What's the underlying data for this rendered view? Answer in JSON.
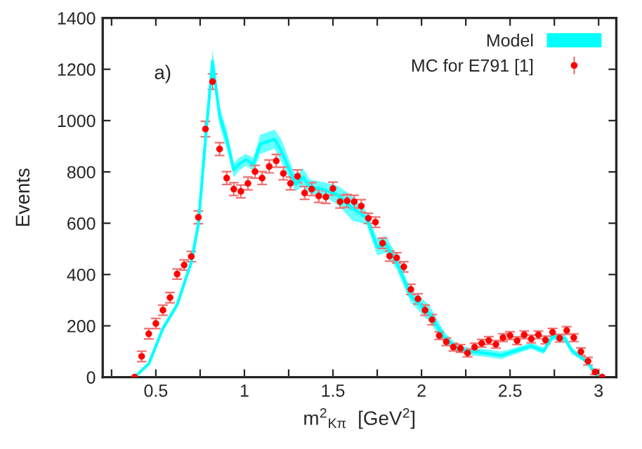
{
  "chart_data": {
    "type": "scatter",
    "xlabel": "m$^{2}$$_{Kπ}$  [GeV$^{2}$]",
    "ylabel": "Events",
    "annotations": [
      "a)"
    ],
    "xlim": [
      0.2,
      3.1
    ],
    "ylim": [
      0,
      1400
    ],
    "xticks": [
      {
        "value": 0.25,
        "label": null
      },
      0.5,
      {
        "value": 0.75,
        "label": null
      },
      1,
      {
        "value": 1.25,
        "label": null
      },
      1.5,
      {
        "value": 1.75,
        "label": null
      },
      2,
      {
        "value": 2.25,
        "label": null
      },
      2.5,
      {
        "value": 2.75,
        "label": null
      },
      3
    ],
    "yticks": [
      0,
      200,
      400,
      600,
      800,
      1000,
      1200,
      1400
    ],
    "grid": false,
    "legend": "top right",
    "series": [
      {
        "name": "Model",
        "type": "line",
        "color": "#00ffff",
        "x": [
          0.38,
          0.46,
          0.54,
          0.62,
          0.7,
          0.74,
          0.78,
          0.82,
          0.86,
          0.9,
          0.94,
          0.97,
          1.01,
          1.05,
          1.09,
          1.17,
          1.21,
          1.29,
          1.33,
          1.37,
          1.45,
          1.53,
          1.61,
          1.69,
          1.75,
          1.8,
          1.86,
          1.94,
          2.04,
          2.13,
          2.2,
          2.27,
          2.35,
          2.45,
          2.53,
          2.62,
          2.69,
          2.74,
          2.81,
          2.85,
          2.93,
          3.0
        ],
        "lower": [
          0,
          45,
          180,
          270,
          435,
          580,
          900,
          1190,
          980,
          890,
          780,
          805,
          825,
          805,
          870,
          890,
          835,
          725,
          745,
          715,
          705,
          670,
          610,
          595,
          475,
          485,
          420,
          290,
          220,
          135,
          100,
          85,
          80,
          70,
          90,
          110,
          90,
          145,
          135,
          90,
          55,
          0
        ],
        "upper": [
          0,
          60,
          200,
          295,
          460,
          610,
          950,
          1275,
          1055,
          965,
          835,
          855,
          870,
          855,
          945,
          965,
          925,
          780,
          815,
          770,
          760,
          745,
          705,
          645,
          540,
          550,
          475,
          340,
          285,
          175,
          125,
          115,
          110,
          100,
          115,
          135,
          115,
          175,
          165,
          115,
          70,
          0
        ],
        "values": [
          0,
          52,
          190,
          282,
          448,
          595,
          925,
          1232,
          1018,
          928,
          808,
          830,
          848,
          830,
          908,
          928,
          880,
          752,
          780,
          742,
          732,
          708,
          658,
          620,
          508,
          518,
          448,
          315,
          252,
          155,
          112,
          100,
          95,
          85,
          102,
          122,
          102,
          160,
          150,
          102,
          62,
          0
        ]
      },
      {
        "name": "MC for E791 [1]",
        "color": "#ff0000",
        "marker": "circle",
        "x": [
          0.38,
          0.42,
          0.46,
          0.5,
          0.54,
          0.58,
          0.62,
          0.66,
          0.7,
          0.74,
          0.78,
          0.82,
          0.86,
          0.9,
          0.94,
          0.98,
          1.02,
          1.06,
          1.1,
          1.14,
          1.18,
          1.22,
          1.26,
          1.3,
          1.34,
          1.38,
          1.42,
          1.46,
          1.5,
          1.54,
          1.58,
          1.62,
          1.66,
          1.7,
          1.74,
          1.78,
          1.82,
          1.86,
          1.9,
          1.94,
          1.98,
          2.02,
          2.06,
          2.1,
          2.14,
          2.18,
          2.22,
          2.26,
          2.3,
          2.34,
          2.38,
          2.42,
          2.46,
          2.5,
          2.54,
          2.58,
          2.62,
          2.66,
          2.7,
          2.74,
          2.78,
          2.82,
          2.86,
          2.9,
          2.94,
          2.98,
          3.02
        ],
        "values": [
          0,
          81,
          169,
          209,
          261,
          310,
          402,
          437,
          470,
          623,
          967,
          1152,
          889,
          776,
          733,
          724,
          755,
          801,
          776,
          821,
          843,
          794,
          755,
          783,
          718,
          733,
          706,
          702,
          735,
          684,
          687,
          684,
          667,
          619,
          604,
          522,
          472,
          465,
          430,
          342,
          305,
          261,
          224,
          162,
          138,
          117,
          112,
          94,
          117,
          132,
          143,
          128,
          154,
          162,
          142,
          165,
          149,
          165,
          145,
          175,
          152,
          182,
          154,
          99,
          62,
          20,
          0
        ],
        "errors": [
          null,
          20,
          20,
          20,
          20,
          20,
          20,
          20,
          20,
          25,
          30,
          30,
          25,
          25,
          25,
          25,
          25,
          25,
          25,
          25,
          25,
          25,
          25,
          25,
          25,
          25,
          25,
          25,
          25,
          25,
          25,
          25,
          25,
          20,
          20,
          20,
          20,
          20,
          20,
          20,
          20,
          20,
          20,
          15,
          15,
          15,
          15,
          15,
          15,
          15,
          15,
          15,
          15,
          15,
          15,
          15,
          15,
          15,
          15,
          15,
          15,
          15,
          15,
          15,
          15,
          10,
          null
        ]
      }
    ]
  }
}
